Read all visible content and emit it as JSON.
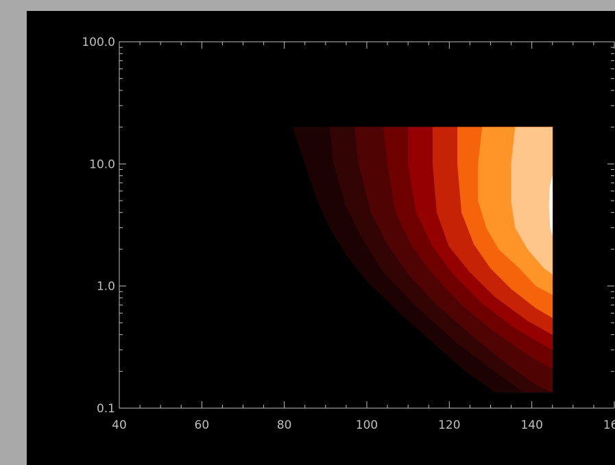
{
  "chart_data": {
    "type": "heatmap",
    "style": "filled-contour",
    "title": "",
    "xlabel": "",
    "ylabel": "",
    "xlim": [
      40,
      160
    ],
    "ylim": [
      0.1,
      100
    ],
    "y_scale": "log",
    "x_tick_labels": [
      "40",
      "60",
      "80",
      "100",
      "120",
      "140",
      "160"
    ],
    "y_tick_labels": [
      "0.1",
      "1.0",
      "10.0",
      "100.0"
    ],
    "x_ticks": [
      40,
      60,
      80,
      100,
      120,
      140,
      160
    ],
    "y_ticks": [
      0.1,
      1,
      10,
      100
    ],
    "data_extent": {
      "x": [
        82,
        145
      ],
      "y": [
        0.135,
        20
      ]
    },
    "levels": [
      {
        "color": "#1c0202",
        "boundary": [
          [
            82,
            20
          ],
          [
            85,
            10
          ],
          [
            88,
            5
          ],
          [
            91,
            3
          ],
          [
            95,
            1.8
          ],
          [
            100,
            1.1
          ],
          [
            108,
            0.6
          ],
          [
            118,
            0.3
          ],
          [
            124,
            0.2
          ],
          [
            131,
            0.135
          ]
        ]
      },
      {
        "color": "#320404",
        "boundary": [
          [
            91,
            20
          ],
          [
            92,
            10
          ],
          [
            95,
            4.5
          ],
          [
            99,
            2.4
          ],
          [
            104,
            1.3
          ],
          [
            112,
            0.68
          ],
          [
            122,
            0.34
          ],
          [
            131,
            0.2
          ],
          [
            138,
            0.135
          ]
        ]
      },
      {
        "color": "#4f0303",
        "boundary": [
          [
            97,
            20
          ],
          [
            98,
            10
          ],
          [
            101,
            4
          ],
          [
            105,
            2.2
          ],
          [
            110,
            1.25
          ],
          [
            117,
            0.7
          ],
          [
            126,
            0.38
          ],
          [
            134,
            0.23
          ],
          [
            141,
            0.155
          ],
          [
            145,
            0.135
          ]
        ]
      },
      {
        "color": "#6e0000",
        "boundary": [
          [
            104,
            20
          ],
          [
            105,
            10
          ],
          [
            107,
            4
          ],
          [
            111,
            2.1
          ],
          [
            116,
            1.25
          ],
          [
            123,
            0.7
          ],
          [
            131,
            0.42
          ],
          [
            140,
            0.26
          ],
          [
            145,
            0.21
          ]
        ]
      },
      {
        "color": "#950000",
        "boundary": [
          [
            110,
            20
          ],
          [
            110,
            10
          ],
          [
            112,
            4
          ],
          [
            116,
            2.1
          ],
          [
            121,
            1.25
          ],
          [
            128,
            0.72
          ],
          [
            136,
            0.45
          ],
          [
            145,
            0.3
          ]
        ]
      },
      {
        "color": "#c62306",
        "boundary": [
          [
            116,
            20
          ],
          [
            116,
            10
          ],
          [
            117,
            4
          ],
          [
            120,
            2.1
          ],
          [
            125,
            1.3
          ],
          [
            131,
            0.82
          ],
          [
            139,
            0.52
          ],
          [
            145,
            0.4
          ]
        ]
      },
      {
        "color": "#f5630a",
        "boundary": [
          [
            122,
            20
          ],
          [
            122,
            10
          ],
          [
            123,
            4
          ],
          [
            126,
            2.2
          ],
          [
            130,
            1.4
          ],
          [
            135,
            0.95
          ],
          [
            141,
            0.66
          ],
          [
            145,
            0.55
          ]
        ]
      },
      {
        "color": "#ff9428",
        "boundary": [
          [
            128,
            20
          ],
          [
            127,
            10
          ],
          [
            127,
            5
          ],
          [
            129,
            3
          ],
          [
            132,
            2
          ],
          [
            137,
            1.4
          ],
          [
            141,
            1.0
          ],
          [
            145,
            0.85
          ]
        ]
      },
      {
        "color": "#ffc68c",
        "boundary": [
          [
            136,
            20
          ],
          [
            135,
            10
          ],
          [
            135,
            5
          ],
          [
            136,
            3
          ],
          [
            139,
            2
          ],
          [
            143,
            1.4
          ],
          [
            145,
            1.25
          ]
        ]
      },
      {
        "color": "#ffffff",
        "boundary": [
          [
            145,
            8
          ],
          [
            144.4,
            6.5
          ],
          [
            144.2,
            4.5
          ],
          [
            144.5,
            3
          ],
          [
            145,
            2.6
          ]
        ]
      }
    ]
  },
  "colors": {
    "background": "#000000",
    "frame": "#a9a9a9",
    "axis": "#bfbfbf"
  }
}
